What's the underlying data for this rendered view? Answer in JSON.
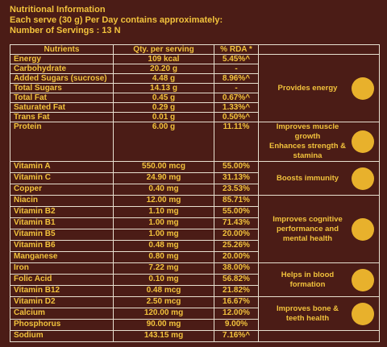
{
  "header": {
    "title": "Nutritional Information",
    "serve": "Each serve (30 g) Per Day contains approximately:",
    "servings": "Number of Servings : 13 N"
  },
  "table": {
    "columns": [
      "Nutrients",
      "Qty. per serving",
      "% RDA *"
    ],
    "groups": [
      {
        "benefit": [
          "Provides energy"
        ],
        "rows": [
          [
            "Energy",
            "109 kcal",
            "5.45%^"
          ],
          [
            "Carbohydrate",
            "20.20 g",
            "-"
          ],
          [
            "Added Sugars (sucrose)",
            "4.48 g",
            "8.96%^"
          ],
          [
            "Total Sugars",
            "14.13 g",
            "-"
          ],
          [
            "Total Fat",
            "0.45 g",
            "0.67%^"
          ],
          [
            "Saturated Fat",
            "0.29 g",
            "1.33%^"
          ],
          [
            "Trans Fat",
            "0.01 g",
            "0.50%^"
          ]
        ]
      },
      {
        "benefit": [
          "Improves muscle growth",
          "Enhances strength & stamina"
        ],
        "rows": [
          [
            "Protein",
            "6.00 g",
            "11.11%"
          ]
        ]
      },
      {
        "benefit": [
          "Boosts immunity"
        ],
        "rows": [
          [
            "Vitamin A",
            "550.00 mcg",
            "55.00%"
          ],
          [
            "Vitamin C",
            "24.90 mg",
            "31.13%"
          ],
          [
            "Copper",
            "0.40 mg",
            "23.53%"
          ]
        ]
      },
      {
        "benefit": [
          "Improves cognitive",
          "performance and",
          "mental health"
        ],
        "rows": [
          [
            "Niacin",
            "12.00 mg",
            "85.71%"
          ],
          [
            "Vitamin B2",
            "1.10 mg",
            "55.00%"
          ],
          [
            "Vitamin B1",
            "1.00 mg",
            "71.43%"
          ],
          [
            "Vitamin B5",
            "1.00 mg",
            "20.00%"
          ],
          [
            "Vitamin B6",
            "0.48 mg",
            "25.26%"
          ],
          [
            "Manganese",
            "0.80 mg",
            "20.00%"
          ]
        ]
      },
      {
        "benefit": [
          "Helps in blood",
          "formation"
        ],
        "rows": [
          [
            "Iron",
            "7.22 mg",
            "38.00%"
          ],
          [
            "Folic Acid",
            "0.10 mg",
            "56.82%"
          ],
          [
            "Vitamin B12",
            "0.48 mcg",
            "21.82%"
          ]
        ]
      },
      {
        "benefit": [
          "Improves bone &",
          "teeth health"
        ],
        "rows": [
          [
            "Vitamin D2",
            "2.50 mcg",
            "16.67%"
          ],
          [
            "Calcium",
            "120.00 mg",
            "12.00%"
          ],
          [
            "Phosphorus",
            "90.00 mg",
            "9.00%"
          ]
        ]
      },
      {
        "rows": [
          [
            "Sodium",
            "143.15 mg",
            "7.16%^"
          ]
        ]
      }
    ]
  }
}
